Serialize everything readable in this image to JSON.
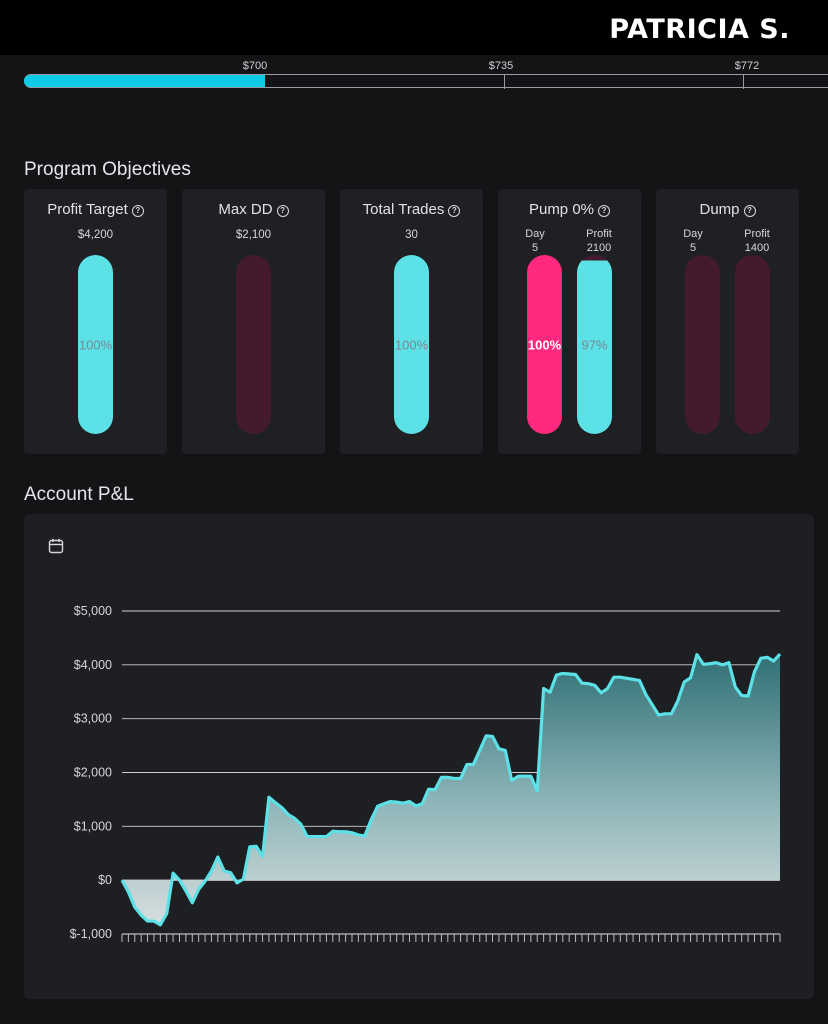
{
  "header": {
    "username": "PATRICIA S."
  },
  "progress": {
    "ticks": [
      "$700",
      "$735",
      "$772"
    ],
    "fill_fraction": 0.3
  },
  "objectives": {
    "title": "Program Objectives",
    "cards": [
      {
        "title": "Profit Target",
        "value": "$4,200",
        "bar": {
          "label": "100%",
          "fill": 1.0,
          "color": "#5be1e6"
        }
      },
      {
        "title": "Max DD",
        "value": "$2,100",
        "bar": {
          "label": "",
          "fill": 0,
          "color": "#441b2d"
        }
      },
      {
        "title": "Total Trades",
        "value": "30",
        "bar": {
          "label": "100%",
          "fill": 1.0,
          "color": "#5be1e6"
        }
      },
      {
        "title": "Pump 0%",
        "day_label": "Day",
        "day_value": "5",
        "profit_label": "Profit",
        "profit_value": "2100",
        "bars": [
          {
            "label": "100%",
            "fill": 1.0,
            "color": "#ff2a7f"
          },
          {
            "label": "97%",
            "fill": 0.97,
            "color": "#5be1e6"
          }
        ]
      },
      {
        "title": "Dump",
        "day_label": "Day",
        "day_value": "5",
        "profit_label": "Profit",
        "profit_value": "1400",
        "bars": [
          {
            "label": "",
            "fill": 0,
            "color": "#441b2d"
          },
          {
            "label": "",
            "fill": 0,
            "color": "#441b2d"
          }
        ]
      }
    ]
  },
  "pnl": {
    "title": "Account P&L",
    "icon": "calendar-icon"
  },
  "chart_data": {
    "type": "area",
    "ylim": [
      -1000,
      5000
    ],
    "yticks": [
      "$5,000",
      "$4,000",
      "$3,000",
      "$2,000",
      "$1,000",
      "$0",
      "$-1,000"
    ],
    "ytick_values": [
      5000,
      4000,
      3000,
      2000,
      1000,
      0,
      -1000
    ],
    "line_color": "#5be1e6",
    "values": [
      0,
      -220,
      -500,
      -650,
      -760,
      -760,
      -830,
      -620,
      130,
      0,
      -200,
      -420,
      -170,
      -20,
      170,
      430,
      170,
      140,
      -50,
      20,
      620,
      630,
      440,
      1540,
      1440,
      1350,
      1220,
      1150,
      1040,
      810,
      810,
      810,
      810,
      910,
      900,
      900,
      880,
      840,
      820,
      1120,
      1370,
      1420,
      1460,
      1450,
      1430,
      1460,
      1380,
      1420,
      1690,
      1680,
      1910,
      1910,
      1890,
      1890,
      2150,
      2150,
      2410,
      2680,
      2670,
      2440,
      2410,
      1850,
      1930,
      1930,
      1930,
      1660,
      3560,
      3490,
      3810,
      3840,
      3830,
      3820,
      3660,
      3650,
      3620,
      3480,
      3560,
      3770,
      3770,
      3750,
      3730,
      3710,
      3450,
      3260,
      3070,
      3090,
      3090,
      3330,
      3680,
      3760,
      4190,
      4010,
      4020,
      4040,
      4000,
      4040,
      3590,
      3430,
      3420,
      3870,
      4120,
      4140,
      4070,
      4200
    ]
  }
}
